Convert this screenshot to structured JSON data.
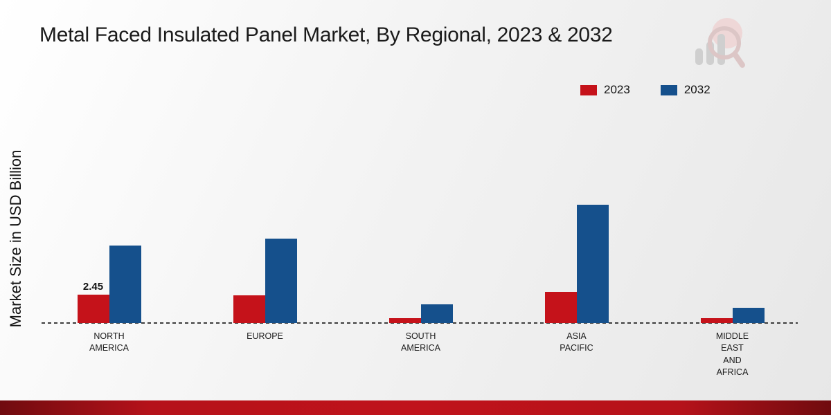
{
  "page": {
    "title": "Metal Faced Insulated Panel Market, By Regional, 2023 & 2032"
  },
  "legend": {
    "items": [
      {
        "label": "2023",
        "color": "#c5121a"
      },
      {
        "label": "2032",
        "color": "#15508c"
      }
    ]
  },
  "chart_data": {
    "type": "bar",
    "title": "Metal Faced Insulated Panel Market, By Regional, 2023 & 2032",
    "ylabel": "Market Size in USD Billion",
    "xlabel": "",
    "ylim": [
      0,
      12
    ],
    "grid": false,
    "legend_position": "top-right",
    "categories": [
      "NORTH AMERICA",
      "EUROPE",
      "SOUTH AMERICA",
      "ASIA PACIFIC",
      "MIDDLE EAST AND AFRICA"
    ],
    "category_label_lines": [
      [
        "NORTH",
        "AMERICA"
      ],
      [
        "EUROPE"
      ],
      [
        "SOUTH",
        "AMERICA"
      ],
      [
        "ASIA",
        "PACIFIC"
      ],
      [
        "MIDDLE",
        "EAST",
        "AND",
        "AFRICA"
      ]
    ],
    "series": [
      {
        "name": "2023",
        "color": "#c5121a",
        "values": [
          2.45,
          2.4,
          0.4,
          2.7,
          0.4
        ]
      },
      {
        "name": "2032",
        "color": "#15508c",
        "values": [
          6.7,
          7.3,
          1.6,
          10.2,
          1.3
        ]
      }
    ],
    "annotations": [
      {
        "series": "2023",
        "category": "NORTH AMERICA",
        "text": "2.45"
      }
    ]
  },
  "colors": {
    "bottom_band": "#b5121a",
    "baseline": "#3c3c3c",
    "background_start": "#ffffff",
    "background_end": "#e7e7e7"
  }
}
